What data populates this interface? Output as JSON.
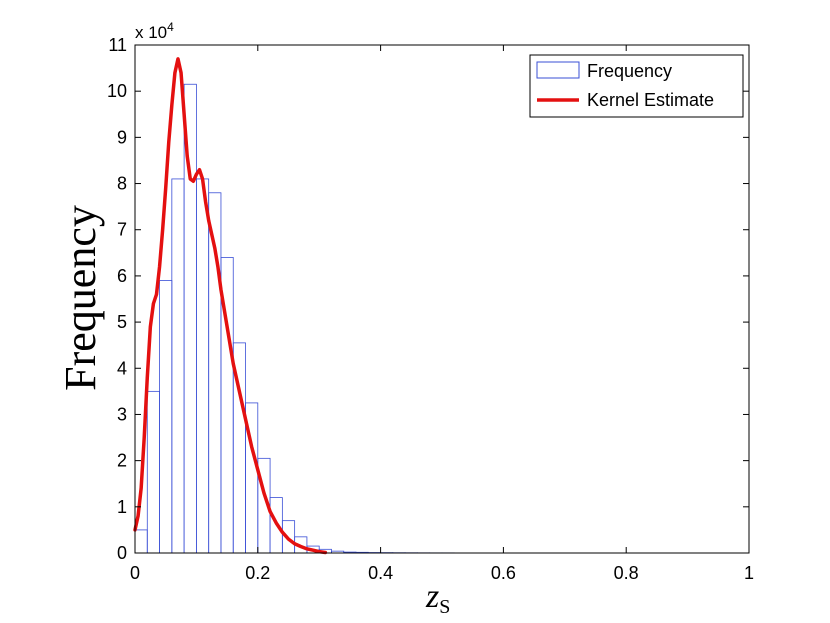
{
  "chart_data": {
    "type": "bar",
    "title": "",
    "xlabel": "z",
    "xlabel_sub": "S",
    "ylabel": "Frequency",
    "y_multiplier": "x 10",
    "y_multiplier_exp": "4",
    "xlim": [
      0,
      1
    ],
    "ylim": [
      0,
      110000
    ],
    "xticks": [
      "0",
      "0.2",
      "0.4",
      "0.6",
      "0.8",
      "1"
    ],
    "xtick_values": [
      0,
      0.2,
      0.4,
      0.6,
      0.8,
      1.0
    ],
    "yticks": [
      "0",
      "1",
      "2",
      "3",
      "4",
      "5",
      "6",
      "7",
      "8",
      "9",
      "10",
      "11"
    ],
    "ytick_values": [
      0,
      10000,
      20000,
      30000,
      40000,
      50000,
      60000,
      70000,
      80000,
      90000,
      100000,
      110000
    ],
    "grid": false,
    "legend_position": "top-right",
    "series": [
      {
        "name": "Frequency",
        "kind": "histogram",
        "color": "#3a4fd6",
        "bin_width": 0.02,
        "bin_starts": [
          0.0,
          0.02,
          0.04,
          0.06,
          0.08,
          0.1,
          0.12,
          0.14,
          0.16,
          0.18,
          0.2,
          0.22,
          0.24,
          0.26,
          0.28,
          0.3,
          0.32,
          0.34,
          0.36,
          0.38,
          0.4,
          0.42,
          0.44,
          0.46,
          0.48,
          0.5,
          0.52,
          0.54,
          0.56,
          0.58,
          0.6,
          0.62,
          0.64,
          0.66,
          0.68,
          0.7,
          0.72,
          0.74,
          0.76,
          0.78,
          0.8,
          0.82,
          0.84,
          0.86,
          0.88,
          0.9,
          0.92,
          0.94,
          0.96,
          0.98
        ],
        "values": [
          5000,
          35000,
          59000,
          81000,
          101500,
          81000,
          78000,
          64000,
          45500,
          32500,
          20500,
          12000,
          7000,
          3500,
          1500,
          800,
          400,
          200,
          150,
          100,
          80,
          60,
          50,
          40,
          30,
          30,
          20,
          20,
          20,
          20,
          15,
          15,
          10,
          10,
          10,
          10,
          10,
          10,
          10,
          10,
          5,
          5,
          5,
          5,
          5,
          5,
          5,
          5,
          5,
          5
        ]
      },
      {
        "name": "Kernel Estimate",
        "kind": "line",
        "color": "#e41010",
        "x": [
          0.0,
          0.005,
          0.01,
          0.015,
          0.02,
          0.025,
          0.03,
          0.035,
          0.04,
          0.045,
          0.05,
          0.055,
          0.06,
          0.065,
          0.07,
          0.075,
          0.08,
          0.085,
          0.09,
          0.095,
          0.1,
          0.105,
          0.11,
          0.115,
          0.12,
          0.125,
          0.13,
          0.135,
          0.14,
          0.145,
          0.15,
          0.16,
          0.17,
          0.18,
          0.19,
          0.2,
          0.21,
          0.22,
          0.23,
          0.24,
          0.25,
          0.26,
          0.27,
          0.28,
          0.29,
          0.3,
          0.31
        ],
        "y": [
          5000,
          8000,
          14000,
          25000,
          38000,
          49000,
          54000,
          56000,
          62000,
          70000,
          79000,
          89000,
          97000,
          104000,
          107000,
          104000,
          95000,
          86000,
          81000,
          80500,
          82000,
          83000,
          81000,
          76000,
          72000,
          69000,
          66000,
          62000,
          57000,
          53000,
          49000,
          41000,
          35000,
          29000,
          23000,
          18000,
          13000,
          9000,
          6500,
          4500,
          3000,
          2000,
          1400,
          900,
          600,
          300,
          100
        ]
      }
    ]
  }
}
